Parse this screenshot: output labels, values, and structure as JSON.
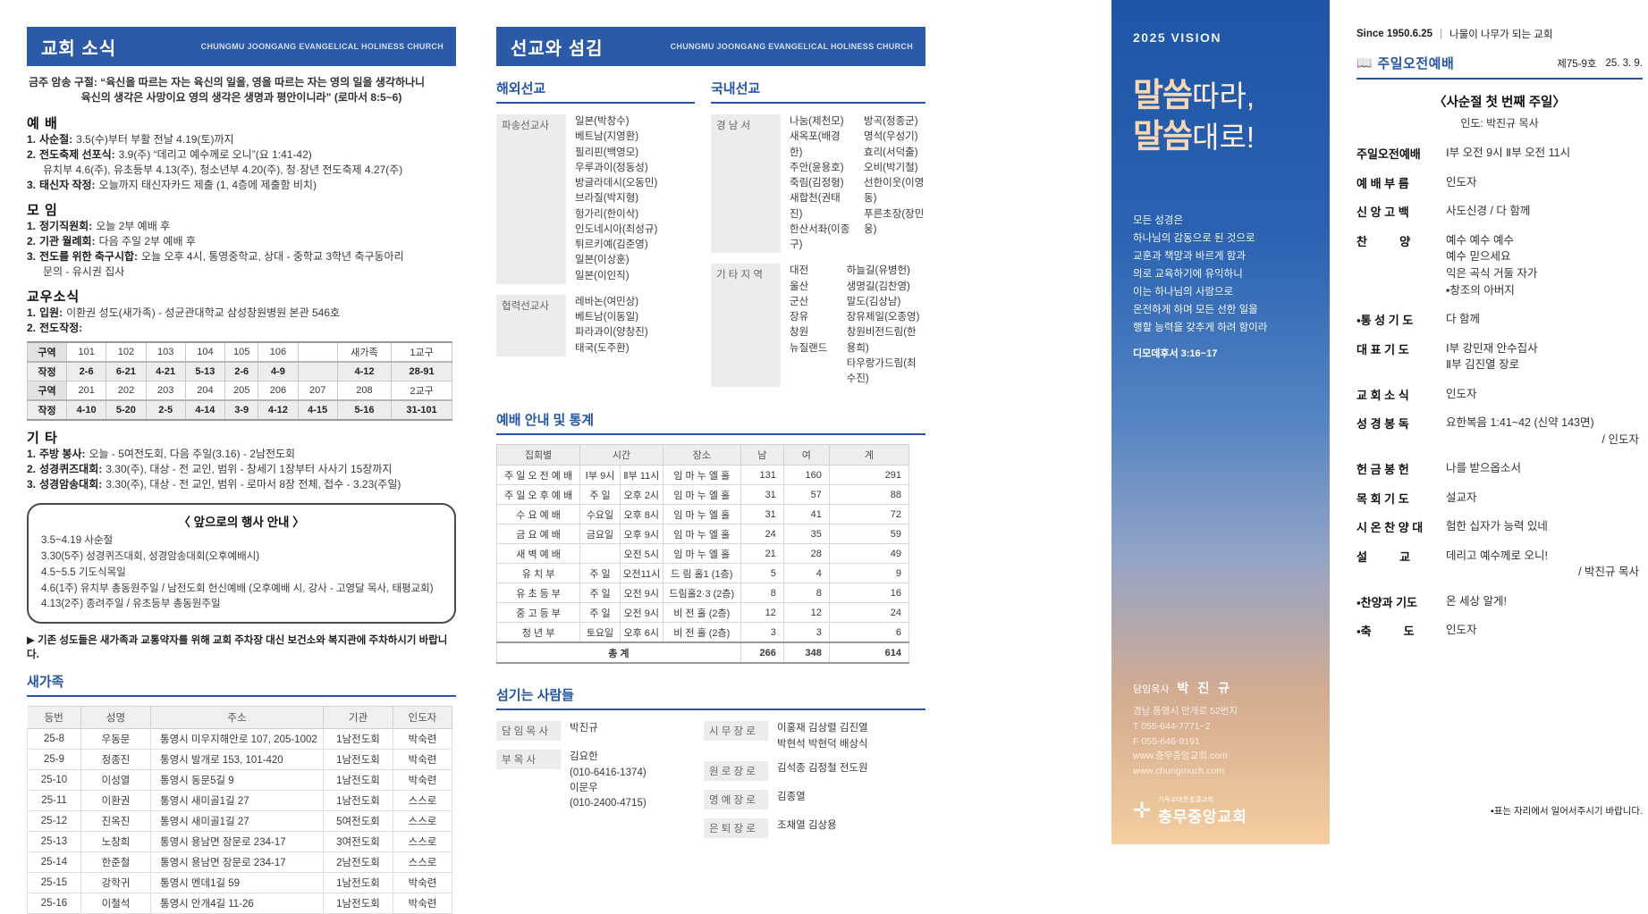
{
  "panel1": {
    "header": {
      "title": "교회 소식",
      "subtitle": "CHUNGMU JOONGANG EVANGELICAL HOLINESS CHURCH"
    },
    "verse": {
      "line1": "금주 암송 구절:  “육신을 따르는 자는 육신의 일을, 영을 따르는 자는 영의 일을 생각하나니",
      "line2": "육신의 생각은 사망이요 영의 생각은 생명과 평안이니라” (로마서 8:5~6)"
    },
    "worship": {
      "title": "예      배",
      "items": [
        {
          "num": "1.",
          "head": "사순절:",
          "body": "3.5(수)부터 부활 전날 4.19(토)까지",
          "body2": ""
        },
        {
          "num": "2.",
          "head": "전도축제 선포식:",
          "body": "3.9(주) “데리고 예수께로 오니”(요 1:41-42)",
          "body2": "유치부 4.6(주), 유초등부 4.13(주), 청소년부 4.20(주), 청·장년 전도축제 4.27(주)"
        },
        {
          "num": "3.",
          "head": "태신자 작정:",
          "body": "오늘까지 태신자카드 제출 (1, 4층에 제출함 비치)",
          "body2": ""
        }
      ]
    },
    "meeting": {
      "title": "모      임",
      "items": [
        {
          "num": "1.",
          "head": "정기직원회:",
          "body": "오늘 2부 예배 후",
          "body2": ""
        },
        {
          "num": "2.",
          "head": "기관 월례회:",
          "body": "다음 주일 2부 예배 후",
          "body2": ""
        },
        {
          "num": "3.",
          "head": "전도를 위한 축구시합:",
          "body": "오늘 오후 4시, 통영중학교, 상대 - 중학교 3학년 축구동아리",
          "body2": "문의 - 유시권 집사"
        }
      ]
    },
    "news": {
      "title": "교우소식",
      "items": [
        {
          "num": "1.",
          "head": "입원:",
          "body": "이환권 성도(새가족) - 성균관대학교 삼성창원병원 본관 546호",
          "body2": ""
        },
        {
          "num": "2.",
          "head": "전도작정:",
          "body": "",
          "body2": ""
        }
      ]
    },
    "pledge_rows": [
      [
        "구역",
        "101",
        "102",
        "103",
        "104",
        "105",
        "106",
        "",
        "새가족",
        "1교구"
      ],
      [
        "작정",
        "2-6",
        "6-21",
        "4-21",
        "5-13",
        "2-6",
        "4-9",
        "",
        "4-12",
        "28-91"
      ],
      [
        "구역",
        "201",
        "202",
        "203",
        "204",
        "205",
        "206",
        "207",
        "208",
        "2교구"
      ],
      [
        "작정",
        "4-10",
        "5-20",
        "2-5",
        "4-14",
        "3-9",
        "4-12",
        "4-15",
        "5-16",
        "31-101"
      ]
    ],
    "etc": {
      "title": "기      타",
      "items": [
        {
          "num": "1.",
          "head": "주방 봉사:",
          "body": "오늘 - 5여전도회,      다음 주일(3.16) - 2남전도회",
          "body2": ""
        },
        {
          "num": "2.",
          "head": "성경퀴즈대회:",
          "body": "3.30(주), 대상 - 전 교인, 범위 - 창세기 1장부터 사사기 15장까지",
          "body2": ""
        },
        {
          "num": "3.",
          "head": "성경암송대회:",
          "body": "3.30(주), 대상 - 전 교인, 범위 - 로마서 8장 전체, 접수 - 3.23(주일)",
          "body2": ""
        }
      ]
    },
    "events_box": {
      "title": "〈 앞으로의 행사 안내 〉",
      "lines": [
        "3.5~4.19  사순절",
        "3.30(5주)  성경퀴즈대회, 성경암송대회(오후예배시)",
        "4.5~5.5  기도식목일",
        "4.6(1주)  유치부 총동원주일 / 남전도회 헌신예배 (오후예배 시, 강사 - 고영달 목사, 태평교회)",
        "4.13(2주)  종려주일 / 유초등부 총동원주일"
      ]
    },
    "parking_notice": "▶ 기존 성도들은 새가족과 교통약자를 위해 교회 주차장 대신 보건소와 복지관에 주차하시기 바랍니다.",
    "newcomers": {
      "title": "새가족",
      "headers": [
        "등번",
        "성명",
        "주소",
        "기관",
        "인도자"
      ],
      "rows": [
        [
          "25-8",
          "우동문",
          "통영시 미우지해안로 107, 205-1002",
          "1남전도회",
          "박숙련"
        ],
        [
          "25-9",
          "정종진",
          "통영시 발개로 153, 101-420",
          "1남전도회",
          "박숙련"
        ],
        [
          "25-10",
          "이성열",
          "통영시 동문5길 9",
          "1남전도회",
          "박숙련"
        ],
        [
          "25-11",
          "이환권",
          "통영시 새미골1길 27",
          "1남전도회",
          "스스로"
        ],
        [
          "25-12",
          "진옥진",
          "통영시 새미골1길 27",
          "5여전도회",
          "스스로"
        ],
        [
          "25-13",
          "노창희",
          "통영시 용남면 장문로 234-17",
          "3여전도회",
          "스스로"
        ],
        [
          "25-14",
          "한준철",
          "통영시 용남면 장문로 234-17",
          "2남전도회",
          "스스로"
        ],
        [
          "25-15",
          "강학귀",
          "통영시 멘데1길 59",
          "1남전도회",
          "박숙련"
        ],
        [
          "25-16",
          "이철석",
          "통영시 안개4길 11-26",
          "1남전도회",
          "박숙련"
        ]
      ]
    }
  },
  "panel2": {
    "header": {
      "title": "선교와 섬김",
      "subtitle": "CHUNGMU JOONGANG EVANGELICAL HOLINESS CHURCH"
    },
    "overseas": {
      "title": "해외선교",
      "sent_label": "파송선교사",
      "sent": [
        "일본(박창수)",
        "베트남(지영환)",
        "필리핀(백영모)",
        "우루과이(정동성)",
        "방글라데시(오동민)",
        "브라질(박지형)",
        "헝가리(한이삭)",
        "인도네시아(최성규)",
        "튀르키예(김준영)",
        "일본(이상훈)",
        "일본(이인직)"
      ],
      "coop_label": "협력선교사",
      "coop": [
        "레바논(여민상)",
        "베트남(이동일)",
        "파라과이(양창진)",
        "태국(도주환)"
      ]
    },
    "domestic": {
      "title": "국내선교",
      "gn_label": "경  남  서",
      "gn_col1": [
        "나눔(제천모)",
        "새옥포(배경한)",
        "주안(윤용호)",
        "죽림(김정형)",
        "새합천(권태진)",
        "한산서좌(이종구)"
      ],
      "gn_col2": [
        "방곡(정종군)",
        "명석(우성기)",
        "효리(서덕출)",
        "오비(박기철)",
        "선한이웃(이영동)",
        "푸른초장(장민웅)"
      ],
      "etc_label": "기 타 지 역",
      "etc_col1": [
        "대전",
        "울산",
        "군산",
        "장유",
        "창원",
        "뉴질랜드"
      ],
      "etc_col2": [
        "하늘길(유병헌)",
        "생명길(김찬영)",
        "말도(김상남)",
        "장유제일(오종영)",
        "창원비전드림(한용희)",
        "타우랑가드림(최수진)"
      ]
    },
    "stats": {
      "title": "예배 안내 및 통계",
      "h_meeting": "집회별",
      "h_time": "시간",
      "h_place": "장소",
      "h_m": "남",
      "h_f": "여",
      "h_t": "계",
      "rows": [
        [
          "주 일 오 전 예 배",
          "Ⅰ부 9시",
          "Ⅱ부 11시",
          "임 마 누 엘  홀",
          "131",
          "160",
          "291"
        ],
        [
          "주 일 오 후 예 배",
          "주  일",
          "오후 2시",
          "임 마 누 엘  홀",
          "31",
          "57",
          "88"
        ],
        [
          "수   요   예   배",
          "수요일",
          "오후 8시",
          "임 마 누 엘  홀",
          "31",
          "41",
          "72"
        ],
        [
          "금   요   예   배",
          "금요일",
          "오후 9시",
          "임 마 누 엘  홀",
          "24",
          "35",
          "59"
        ],
        [
          "새   벽   예   배",
          "",
          "오전 5시",
          "임 마 누 엘  홀",
          "21",
          "28",
          "49"
        ],
        [
          "유    치    부",
          "주  일",
          "오전11시",
          "드 림 홀1 (1층)",
          "5",
          "4",
          "9"
        ],
        [
          "유  초  등  부",
          "주  일",
          "오전 9시",
          "드림홀2·3 (2층)",
          "8",
          "8",
          "16"
        ],
        [
          "중  고  등  부",
          "주  일",
          "오전 9시",
          "비 전 홀 (2층)",
          "12",
          "12",
          "24"
        ],
        [
          "청    년    부",
          "토요일",
          "오후 6시",
          "비 전 홀 (2층)",
          "3",
          "3",
          "6"
        ]
      ],
      "total_label": "총  계",
      "total_m": "266",
      "total_f": "348",
      "total_t": "614"
    },
    "servants": {
      "title": "섬기는 사람들",
      "senior_label": "담 임 목 사",
      "senior_lines": [
        "박진규"
      ],
      "assoc_label": "부  목  사",
      "assoc_lines": [
        "김요한",
        "(010-6416-1374)",
        "이문우",
        "(010-2400-4715)"
      ],
      "elder_label": "시 무 장 로",
      "elder_lines": [
        "이홍재  김상렬  김진열",
        "박현석  박현덕  배상식"
      ],
      "emeritus_label": "원 로 장 로",
      "emeritus_lines": [
        "김석종  김정철  전도원"
      ],
      "honorary_label": "명 예 장 로",
      "honorary_lines": [
        "김종열"
      ],
      "retired_label": "은 퇴 장 로",
      "retired_lines": [
        "조채열  김상용"
      ]
    }
  },
  "panel3": {
    "vision": "2025 VISION",
    "slogan1_bold": "말씀",
    "slogan1_rest": "따라,",
    "slogan2_bold": "말씀",
    "slogan2_rest": "대로!",
    "body_lines": [
      "모든 성경은",
      "하나님의 감동으로 된 것으로",
      "교훈과 책망과 바르게 함과",
      "의로 교육하기에 유익하니",
      "이는 하나님의 사람으로",
      "온전하게 하며 모든 선한 일을",
      "행할 능력을 갖추게 하려 함이라"
    ],
    "ref": "디모데후서 3:16~17",
    "pastor_label": "담임목사",
    "pastor_name": "박 진 규",
    "addr1": "경남 통영시 안개로 52번지",
    "tel": "T 055-644-7771~2",
    "fax": "F 055-646-9191",
    "web1": "www.충무중앙교회.com",
    "web2": "www.chungmuch.com",
    "logo_mark": "✛",
    "logo_denom": "기독교대한성결교회",
    "logo_name": "충무중앙교회"
  },
  "panel4": {
    "since": "Since 1950.6.25",
    "slogan": "나물이 나무가 되는 교회",
    "service_title": "주일오전예배",
    "issue_no": "제75-9호",
    "date": "25. 3. 9.",
    "subtitle": "〈사순절 첫 번째 주일〉",
    "leader": "인도: 박진규 목사",
    "order": [
      {
        "label": "주일오전예배",
        "l1": "Ⅰ부 오전 9시   Ⅱ부 오전 11시"
      },
      {
        "label": "예 배 부 름",
        "l1": "인도자"
      },
      {
        "label": "신 앙 고 백",
        "l1": "사도신경  /  다 함께"
      },
      {
        "label": "찬          양",
        "l1": "예수 예수 예수",
        "l2": "예수 믿으세요",
        "l3": "익은 곡식 거둘 자가",
        "l4": "▪창조의 아버지"
      },
      {
        "label": "▪통 성 기 도",
        "l1": "다 함께"
      },
      {
        "label": "대 표 기 도",
        "l1": "Ⅰ부 강민재 안수집사",
        "l2": "Ⅱ부 김진열 장로"
      },
      {
        "label": "교 회 소 식",
        "l1": "인도자"
      },
      {
        "label": "성 경 봉 독",
        "l1": "요한복음 1:41~42 (신약 143면)",
        "l2": "/ 인도자"
      },
      {
        "label": "헌 금 봉 헌",
        "l1": "나를 받으옵소서"
      },
      {
        "label": "목 회 기 도",
        "l1": "설교자"
      },
      {
        "label": "시 온 찬 양 대",
        "l1": "험한 십자가 능력 있네"
      },
      {
        "label": "설          교",
        "l1": "데리고 예수께로 오니!",
        "l2": "/ 박진규 목사"
      },
      {
        "label": "▪찬양과 기도",
        "l1": "온 세상 알게!"
      },
      {
        "label": "▪축          도",
        "l1": "인도자"
      }
    ],
    "footnote": "▪표는 자리에서 일어서주시기 바랍니다."
  }
}
